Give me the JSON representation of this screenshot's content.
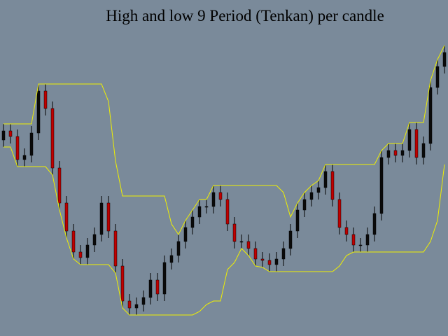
{
  "chart_data": {
    "type": "candlestick",
    "title": "High and low 9 Period (Tenkan) per candle",
    "background": "#7a8a9a",
    "up_color": "#0a0a0a",
    "down_color": "#c00000",
    "wick_color": "#000000",
    "ylim": [
      0,
      480
    ],
    "open": [
      280,
      293,
      285,
      252,
      258,
      290,
      350,
      325,
      240,
      190,
      150,
      120,
      112,
      130,
      145,
      190,
      150,
      100,
      50,
      40,
      45,
      55,
      80,
      60,
      105,
      115,
      135,
      155,
      170,
      185,
      185,
      205,
      195,
      160,
      135,
      135,
      125,
      110,
      108,
      102,
      110,
      125,
      150,
      180,
      195,
      205,
      212,
      235,
      195,
      155,
      145,
      130,
      130,
      145,
      175,
      255,
      265,
      258,
      265,
      295,
      255,
      275,
      355,
      385
    ],
    "high": [
      303,
      303,
      295,
      268,
      300,
      360,
      360,
      335,
      250,
      200,
      160,
      130,
      140,
      155,
      200,
      200,
      160,
      110,
      60,
      55,
      65,
      90,
      90,
      115,
      125,
      145,
      165,
      180,
      195,
      195,
      215,
      215,
      205,
      170,
      145,
      145,
      135,
      120,
      118,
      120,
      135,
      160,
      190,
      205,
      215,
      222,
      245,
      245,
      205,
      165,
      155,
      140,
      155,
      185,
      265,
      275,
      275,
      275,
      305,
      305,
      285,
      365,
      395,
      415
    ],
    "low": [
      270,
      275,
      242,
      242,
      248,
      280,
      315,
      230,
      180,
      140,
      110,
      102,
      102,
      120,
      135,
      140,
      90,
      40,
      30,
      30,
      35,
      45,
      50,
      50,
      95,
      105,
      125,
      145,
      160,
      175,
      175,
      185,
      150,
      125,
      125,
      115,
      100,
      98,
      92,
      92,
      100,
      115,
      140,
      170,
      185,
      195,
      202,
      185,
      145,
      135,
      120,
      120,
      120,
      135,
      165,
      245,
      248,
      248,
      255,
      245,
      245,
      265,
      345,
      375
    ],
    "close": [
      293,
      285,
      252,
      258,
      290,
      350,
      325,
      240,
      190,
      150,
      120,
      112,
      130,
      145,
      190,
      150,
      100,
      50,
      40,
      45,
      55,
      80,
      60,
      105,
      115,
      135,
      155,
      170,
      185,
      185,
      205,
      195,
      160,
      135,
      135,
      125,
      110,
      108,
      102,
      110,
      125,
      150,
      180,
      195,
      205,
      212,
      235,
      195,
      155,
      145,
      130,
      130,
      145,
      175,
      255,
      265,
      258,
      265,
      295,
      255,
      275,
      355,
      385,
      405
    ],
    "series": [
      {
        "name": "Tenkan high",
        "color": "#f0f000",
        "values": [
          303,
          303,
          303,
          303,
          303,
          360,
          360,
          360,
          360,
          360,
          360,
          360,
          360,
          360,
          360,
          335,
          250,
          200,
          200,
          200,
          200,
          200,
          200,
          200,
          160,
          145,
          165,
          180,
          195,
          195,
          215,
          215,
          215,
          215,
          215,
          215,
          215,
          215,
          215,
          215,
          205,
          170,
          190,
          205,
          215,
          222,
          245,
          245,
          245,
          245,
          245,
          245,
          245,
          245,
          265,
          275,
          275,
          275,
          305,
          305,
          305,
          365,
          395,
          415
        ]
      },
      {
        "name": "Tenkan low",
        "color": "#f0f000",
        "values": [
          270,
          270,
          242,
          242,
          242,
          242,
          242,
          230,
          180,
          140,
          110,
          102,
          102,
          102,
          102,
          102,
          90,
          40,
          30,
          30,
          30,
          30,
          30,
          30,
          30,
          30,
          30,
          30,
          35,
          45,
          50,
          50,
          95,
          105,
          125,
          115,
          100,
          98,
          92,
          92,
          92,
          92,
          92,
          92,
          92,
          92,
          92,
          92,
          100,
          115,
          120,
          120,
          120,
          120,
          120,
          120,
          120,
          120,
          120,
          120,
          120,
          135,
          165,
          245
        ]
      }
    ]
  }
}
